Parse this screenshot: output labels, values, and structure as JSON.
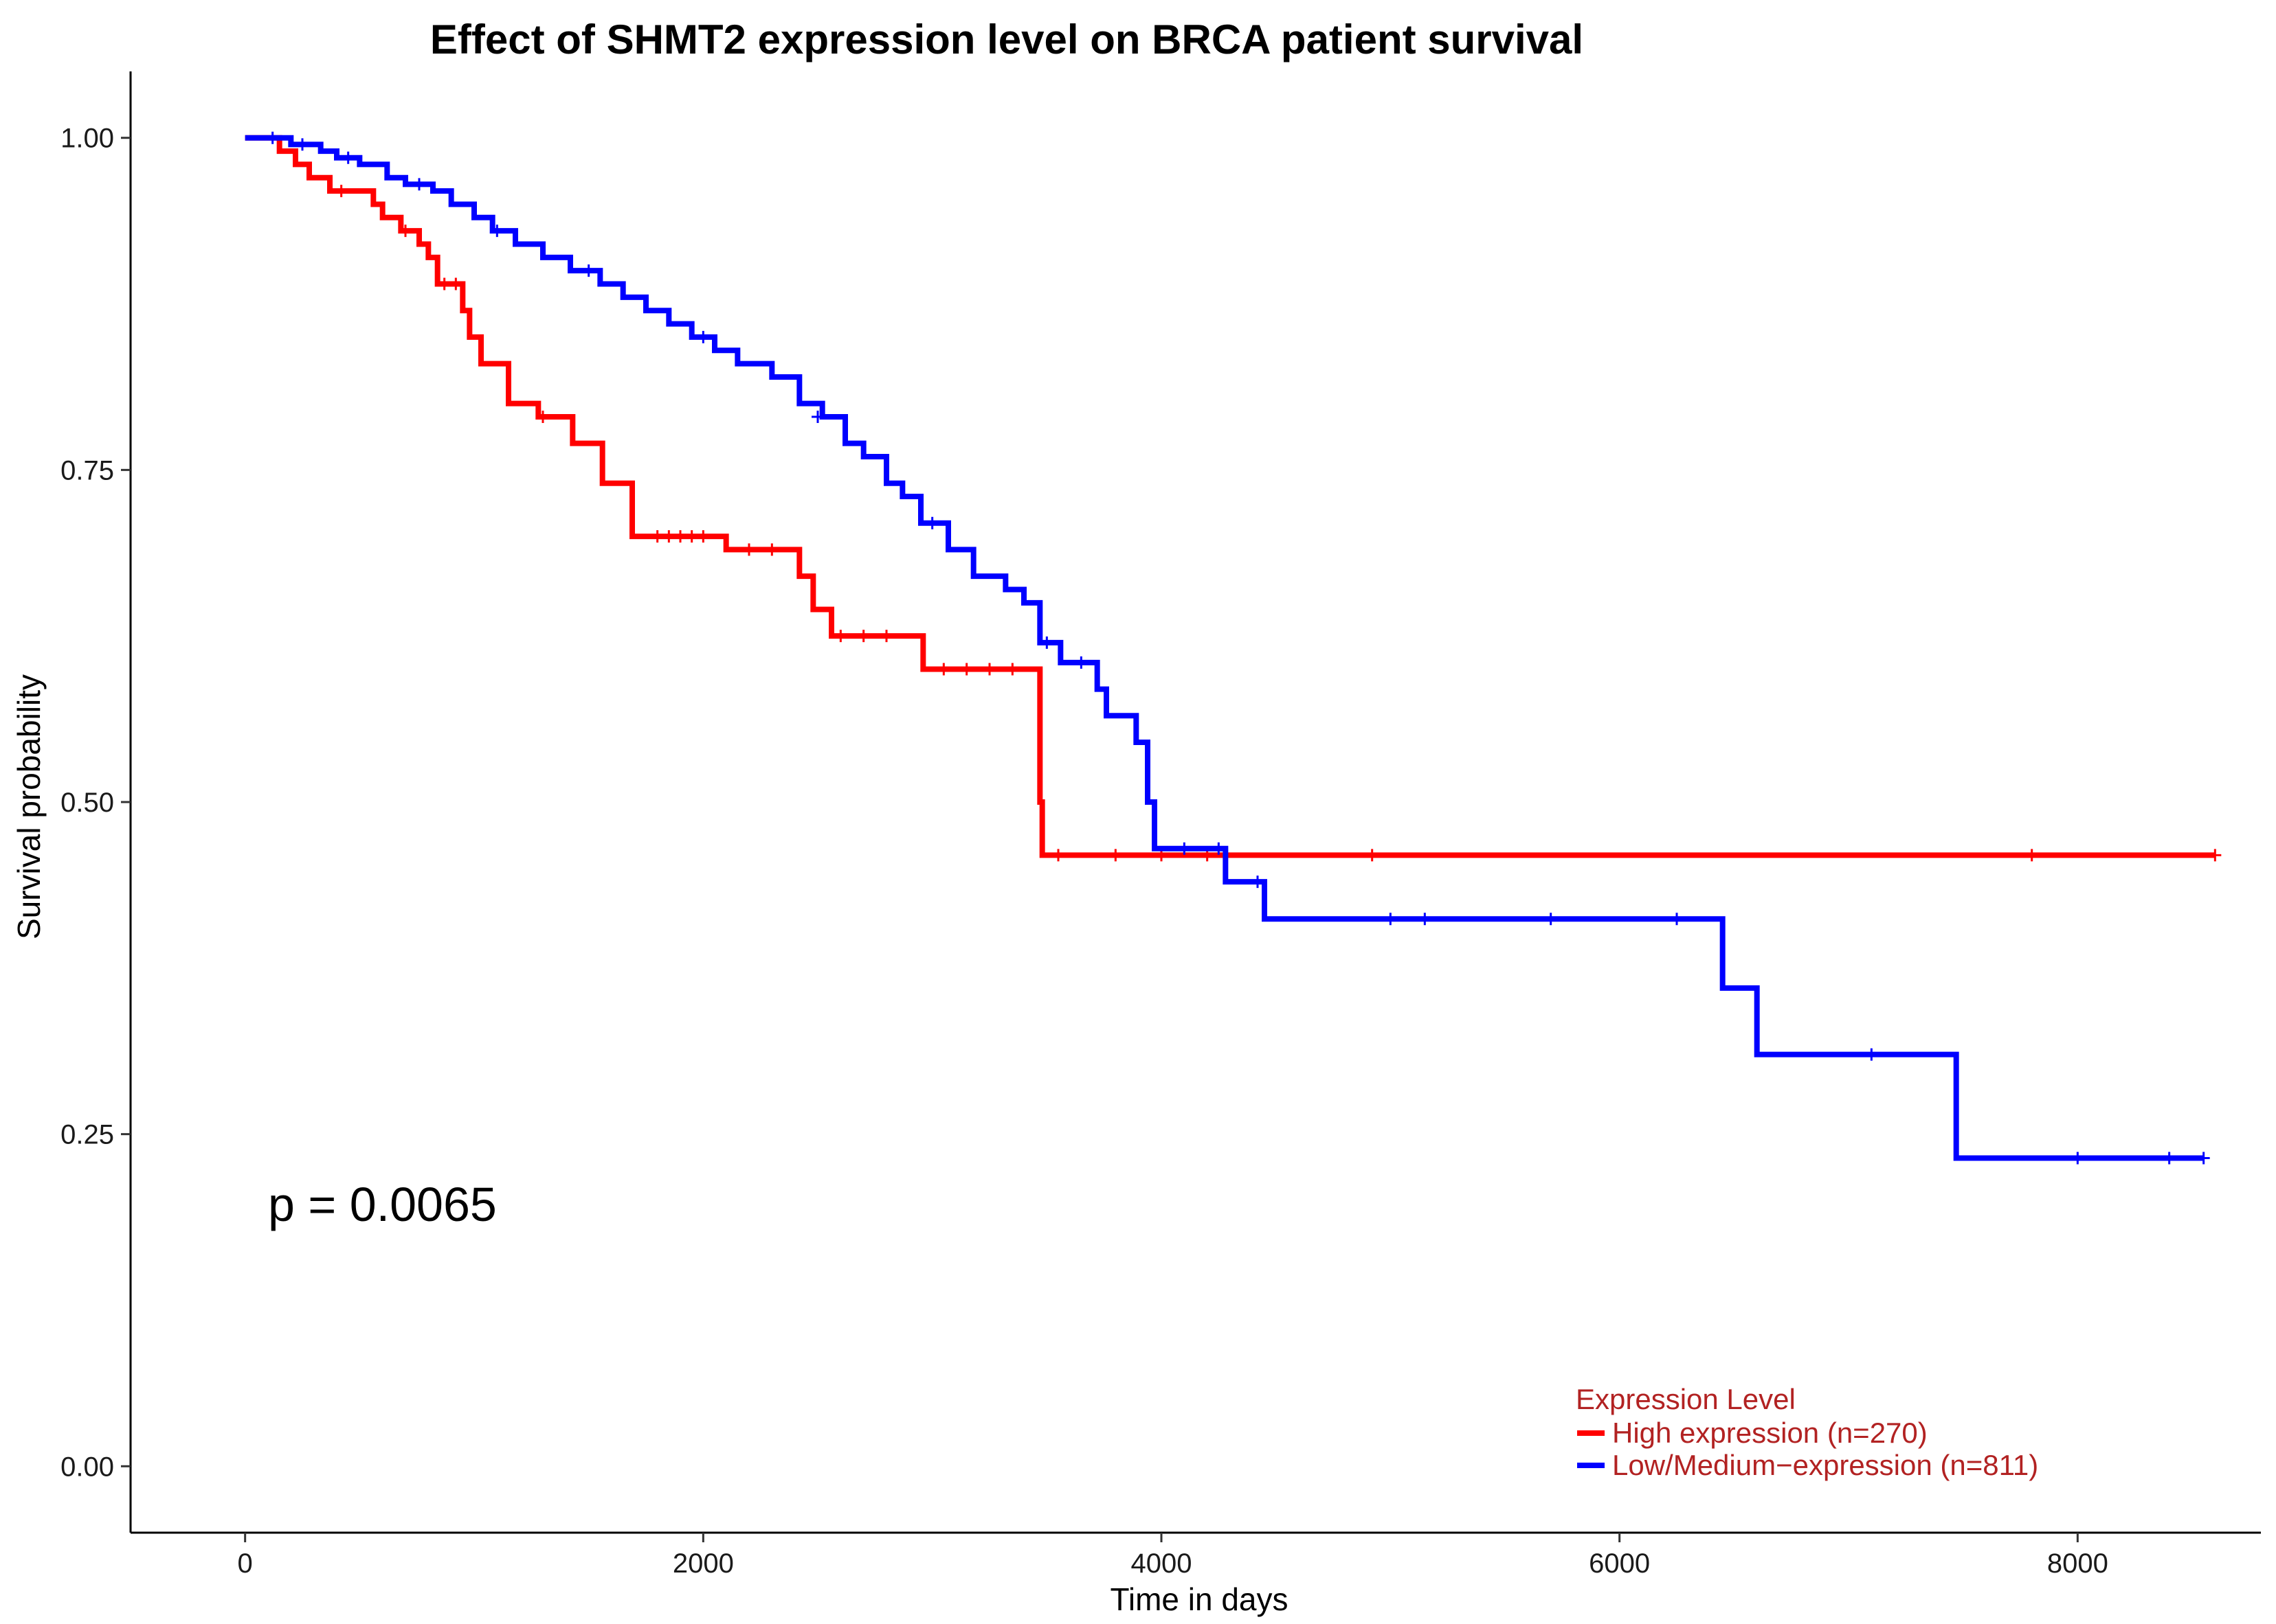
{
  "chart_data": {
    "type": "line",
    "title": "Effect of SHMT2 expression level on BRCA patient survival",
    "xlabel": "Time in days",
    "ylabel": "Survival probability",
    "xlim": [
      -500,
      8800
    ],
    "ylim": [
      -0.05,
      1.05
    ],
    "x_ticks": [
      0,
      2000,
      4000,
      6000,
      8000
    ],
    "x_tick_labels": [
      "0",
      "2000",
      "4000",
      "6000",
      "8000"
    ],
    "y_ticks": [
      0,
      0.25,
      0.5,
      0.75,
      1.0
    ],
    "y_tick_labels": [
      "0.00",
      "0.25",
      "0.50",
      "0.75",
      "1.00"
    ],
    "annotation": "p = 0.0065",
    "legend": {
      "title": "Expression Level",
      "placement": "bottom-right",
      "entries": [
        "High expression (n=270)",
        "Low/Medium−expression (n=811)"
      ]
    },
    "series": [
      {
        "name": "High expression (n=270)",
        "color": "#FF0000",
        "steps": [
          [
            0,
            1.0
          ],
          [
            150,
            0.99
          ],
          [
            220,
            0.98
          ],
          [
            280,
            0.97
          ],
          [
            370,
            0.96
          ],
          [
            560,
            0.95
          ],
          [
            600,
            0.94
          ],
          [
            680,
            0.93
          ],
          [
            760,
            0.92
          ],
          [
            800,
            0.91
          ],
          [
            840,
            0.89
          ],
          [
            950,
            0.87
          ],
          [
            980,
            0.85
          ],
          [
            1030,
            0.83
          ],
          [
            1150,
            0.8
          ],
          [
            1280,
            0.79
          ],
          [
            1430,
            0.77
          ],
          [
            1560,
            0.74
          ],
          [
            1690,
            0.7
          ],
          [
            2100,
            0.69
          ],
          [
            2420,
            0.67
          ],
          [
            2480,
            0.645
          ],
          [
            2560,
            0.625
          ],
          [
            2960,
            0.6
          ],
          [
            3470,
            0.5
          ],
          [
            3480,
            0.46
          ],
          [
            8600,
            0.46
          ]
        ],
        "censors": [
          [
            420,
            0.96
          ],
          [
            700,
            0.93
          ],
          [
            870,
            0.89
          ],
          [
            920,
            0.89
          ],
          [
            1300,
            0.79
          ],
          [
            1800,
            0.7
          ],
          [
            1850,
            0.7
          ],
          [
            1900,
            0.7
          ],
          [
            1950,
            0.7
          ],
          [
            2000,
            0.7
          ],
          [
            2200,
            0.69
          ],
          [
            2300,
            0.69
          ],
          [
            2600,
            0.625
          ],
          [
            2700,
            0.625
          ],
          [
            2800,
            0.625
          ],
          [
            3050,
            0.6
          ],
          [
            3150,
            0.6
          ],
          [
            3250,
            0.6
          ],
          [
            3350,
            0.6
          ],
          [
            3550,
            0.46
          ],
          [
            3800,
            0.46
          ],
          [
            4000,
            0.46
          ],
          [
            4200,
            0.46
          ],
          [
            4920,
            0.46
          ],
          [
            7800,
            0.46
          ],
          [
            8600,
            0.46
          ]
        ]
      },
      {
        "name": "Low/Medium−expression (n=811)",
        "color": "#0000FF",
        "steps": [
          [
            0,
            1.0
          ],
          [
            200,
            0.995
          ],
          [
            330,
            0.99
          ],
          [
            400,
            0.985
          ],
          [
            500,
            0.98
          ],
          [
            620,
            0.97
          ],
          [
            700,
            0.965
          ],
          [
            820,
            0.96
          ],
          [
            900,
            0.95
          ],
          [
            1000,
            0.94
          ],
          [
            1080,
            0.93
          ],
          [
            1180,
            0.92
          ],
          [
            1300,
            0.91
          ],
          [
            1420,
            0.9
          ],
          [
            1550,
            0.89
          ],
          [
            1650,
            0.88
          ],
          [
            1750,
            0.87
          ],
          [
            1850,
            0.86
          ],
          [
            1950,
            0.85
          ],
          [
            2050,
            0.84
          ],
          [
            2150,
            0.83
          ],
          [
            2300,
            0.82
          ],
          [
            2420,
            0.8
          ],
          [
            2520,
            0.79
          ],
          [
            2620,
            0.77
          ],
          [
            2700,
            0.76
          ],
          [
            2800,
            0.74
          ],
          [
            2870,
            0.73
          ],
          [
            2950,
            0.71
          ],
          [
            3070,
            0.69
          ],
          [
            3180,
            0.67
          ],
          [
            3320,
            0.66
          ],
          [
            3400,
            0.65
          ],
          [
            3470,
            0.62
          ],
          [
            3560,
            0.605
          ],
          [
            3720,
            0.585
          ],
          [
            3760,
            0.565
          ],
          [
            3890,
            0.545
          ],
          [
            3940,
            0.5
          ],
          [
            3970,
            0.465
          ],
          [
            4280,
            0.44
          ],
          [
            4450,
            0.412
          ],
          [
            6450,
            0.36
          ],
          [
            6600,
            0.31
          ],
          [
            7470,
            0.232
          ],
          [
            8550,
            0.232
          ]
        ],
        "censors": [
          [
            120,
            1.0
          ],
          [
            250,
            0.995
          ],
          [
            450,
            0.985
          ],
          [
            760,
            0.965
          ],
          [
            1100,
            0.93
          ],
          [
            1500,
            0.9
          ],
          [
            2000,
            0.85
          ],
          [
            2500,
            0.79
          ],
          [
            3000,
            0.71
          ],
          [
            3500,
            0.62
          ],
          [
            3650,
            0.605
          ],
          [
            4100,
            0.465
          ],
          [
            4250,
            0.465
          ],
          [
            4420,
            0.44
          ],
          [
            5000,
            0.412
          ],
          [
            5150,
            0.412
          ],
          [
            5700,
            0.412
          ],
          [
            6250,
            0.412
          ],
          [
            7100,
            0.31
          ],
          [
            8000,
            0.232
          ],
          [
            8400,
            0.232
          ],
          [
            8550,
            0.232
          ]
        ]
      }
    ]
  }
}
